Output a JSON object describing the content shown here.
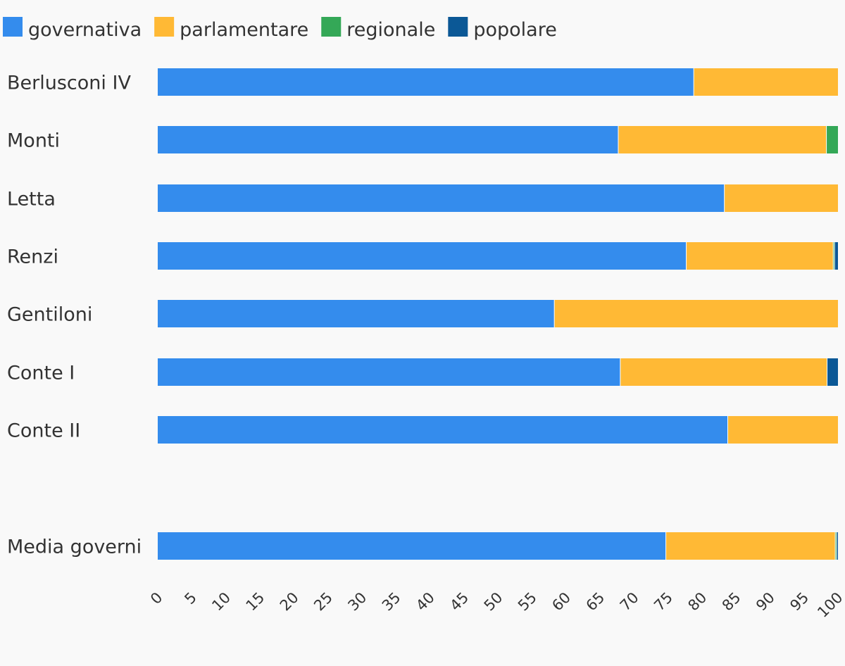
{
  "chart_data": {
    "type": "bar",
    "orientation": "horizontal",
    "stacked": true,
    "legend_position": "top-left",
    "grid": false,
    "xlim": [
      0,
      100
    ],
    "xticks": [
      "0",
      "5",
      "10",
      "15",
      "20",
      "25",
      "30",
      "35",
      "40",
      "45",
      "50",
      "55",
      "60",
      "65",
      "70",
      "75",
      "80",
      "85",
      "90",
      "95",
      "100"
    ],
    "categories": [
      "Berlusconi IV",
      "Monti",
      "Letta",
      "Renzi",
      "Gentiloni",
      "Conte I",
      "Conte II",
      "Media governi"
    ],
    "series": [
      {
        "name": "governativa",
        "color": "#348ced",
        "values": [
          78.8,
          67.7,
          83.3,
          77.7,
          58.3,
          68.0,
          83.8,
          74.7
        ]
      },
      {
        "name": "parlamentare",
        "color": "#ffb935",
        "values": [
          21.2,
          30.6,
          16.7,
          21.6,
          41.7,
          30.4,
          16.2,
          24.9
        ]
      },
      {
        "name": "regionale",
        "color": "#34a857",
        "values": [
          0,
          1.7,
          0,
          0.2,
          0,
          0,
          0,
          0.2
        ]
      },
      {
        "name": "popolare",
        "color": "#0b5896",
        "values": [
          0,
          0,
          0,
          0.5,
          0,
          1.6,
          0,
          0.2
        ]
      }
    ]
  }
}
